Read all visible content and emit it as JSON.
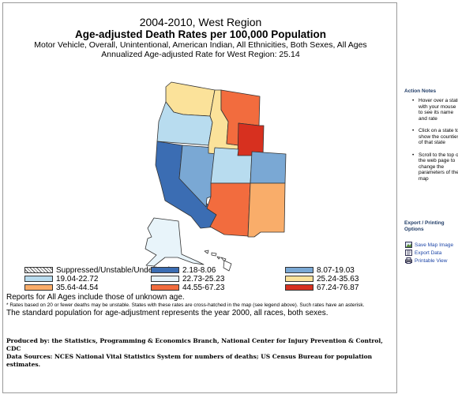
{
  "header": {
    "title": "2004-2010, West Region",
    "subtitle": "Age-adjusted Death Rates per 100,000 Population",
    "filters": "Motor Vehicle, Overall, Unintentional, American Indian, All Ethnicities, Both Sexes, All Ages",
    "annualized": "Annualized Age-adjusted Rate for West Region: 25.14"
  },
  "legend": [
    {
      "label": "Suppressed/Unstable/Undefined",
      "color": "#ffffff",
      "pattern": "hatch"
    },
    {
      "label": "2.18-8.06",
      "color": "#3b6db3"
    },
    {
      "label": "8.07-19.03",
      "color": "#7aa8d4"
    },
    {
      "label": "19.04-22.72",
      "color": "#b8dcef"
    },
    {
      "label": "22.73-25.23",
      "color": "#e8f4fa"
    },
    {
      "label": "25.24-35.63",
      "color": "#fbe29a"
    },
    {
      "label": "35.64-44.54",
      "color": "#f9ad6a"
    },
    {
      "label": "44.55-67.23",
      "color": "#f26c3e"
    },
    {
      "label": "67.24-76.87",
      "color": "#d7301f"
    }
  ],
  "notes": {
    "unknown_age": "Reports for All Ages include those of unknown age.",
    "unstable": "* Rates based on 20 or fewer deaths may be unstable.  States with these rates are cross-hatched in the map (see legend above). Such rates have an asterisk.",
    "standard_pop": "The standard population for age-adjustment represents the year 2000, all races, both sexes."
  },
  "produced_by": "Produced by: the Statistics, Programming & Economics Branch, National Center for Injury Prevention & Control, CDC",
  "data_sources": "Data Sources: NCES National Vital Statistics System for numbers of deaths; US Census Bureau for population estimates.",
  "sidebar": {
    "action_notes_title": "Action Notes",
    "action_notes": [
      "Hover over a state with your mouse to see its name and rate",
      "Click on a state to show the counties of that state",
      "Scroll to the top of the web page to change the parameters of the map"
    ],
    "export_title": "Export / Printing Options",
    "save_map": "Save Map Image",
    "export_data": "Export Data",
    "printable_view": "Printable View"
  },
  "states": [
    {
      "name": "WA",
      "color": "#fbe29a"
    },
    {
      "name": "OR",
      "color": "#b8dcef"
    },
    {
      "name": "CA",
      "color": "#3b6db3"
    },
    {
      "name": "NV",
      "color": "#7aa8d4"
    },
    {
      "name": "ID",
      "color": "#fbe29a"
    },
    {
      "name": "MT",
      "color": "#f26c3e"
    },
    {
      "name": "WY",
      "color": "#d7301f"
    },
    {
      "name": "UT",
      "color": "#b8dcef"
    },
    {
      "name": "CO",
      "color": "#7aa8d4"
    },
    {
      "name": "AZ",
      "color": "#f26c3e"
    },
    {
      "name": "NM",
      "color": "#f9ad6a"
    },
    {
      "name": "AK",
      "color": "#e8f4fa"
    },
    {
      "name": "HI",
      "color": "#ffffff"
    }
  ]
}
